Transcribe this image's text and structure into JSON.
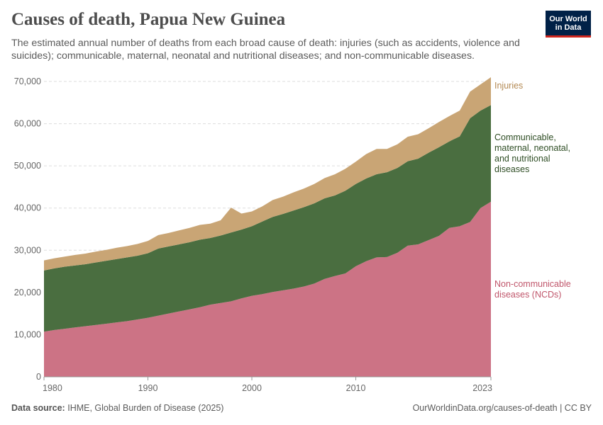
{
  "header": {
    "title": "Causes of death, Papua New Guinea",
    "subtitle": "The estimated annual number of deaths from each broad cause of death: injuries (such as accidents, violence and suicides); communicable, maternal, neonatal and nutritional diseases; and non-communicable diseases.",
    "logo_line1": "Our World",
    "logo_line2": "in Data"
  },
  "footer": {
    "source_label": "Data source:",
    "source_text": "IHME, Global Burden of Disease (2025)",
    "url": "OurWorldinData.org/causes-of-death | CC BY"
  },
  "colors": {
    "ncd": "#cc7385",
    "communicable": "#4a6e40",
    "injuries": "#c9a575",
    "grid": "#dddddd",
    "axis": "#999999"
  },
  "chart_data": {
    "type": "area",
    "stacked": true,
    "title": "Causes of death, Papua New Guinea",
    "x": [
      1980,
      1981,
      1982,
      1983,
      1984,
      1985,
      1986,
      1987,
      1988,
      1989,
      1990,
      1991,
      1992,
      1993,
      1994,
      1995,
      1996,
      1997,
      1998,
      1999,
      2000,
      2001,
      2002,
      2003,
      2004,
      2005,
      2006,
      2007,
      2008,
      2009,
      2010,
      2011,
      2012,
      2013,
      2014,
      2015,
      2016,
      2017,
      2018,
      2019,
      2020,
      2021,
      2022,
      2023
    ],
    "x_tick_labels": [
      "1980",
      "1990",
      "2000",
      "2010",
      "2023"
    ],
    "x_ticks": [
      1980,
      1990,
      2000,
      2010,
      2023
    ],
    "y_tick_labels": [
      "0",
      "10,000",
      "20,000",
      "30,000",
      "40,000",
      "50,000",
      "60,000",
      "70,000"
    ],
    "ylim": [
      0,
      70000
    ],
    "grid": "horizontal dashed",
    "legend": "right, inline labels",
    "series": [
      {
        "name": "Non-communicable diseases (NCDs)",
        "label_lines": [
          "Non-communicable",
          "diseases (NCDs)"
        ],
        "color": "#cc7385",
        "values": [
          10700,
          11100,
          11400,
          11700,
          12000,
          12300,
          12600,
          12900,
          13200,
          13600,
          14000,
          14500,
          15000,
          15500,
          16000,
          16500,
          17100,
          17500,
          17900,
          18600,
          19200,
          19600,
          20100,
          20500,
          20900,
          21400,
          22100,
          23200,
          23900,
          24500,
          26200,
          27400,
          28300,
          28400,
          29400,
          31100,
          31400,
          32400,
          33400,
          35300,
          35700,
          36700,
          40000,
          41500
        ]
      },
      {
        "name": "Communicable, maternal, neonatal, and nutritional diseases",
        "label_lines": [
          "Communicable,",
          "maternal, neonatal,",
          "and nutritional",
          "diseases"
        ],
        "color": "#4a6e40",
        "values": [
          14500,
          14600,
          14700,
          14700,
          14700,
          14800,
          14900,
          15000,
          15100,
          15100,
          15300,
          15900,
          15900,
          15900,
          15900,
          16000,
          15800,
          16000,
          16300,
          16300,
          16500,
          17200,
          17800,
          18100,
          18500,
          18800,
          19000,
          19100,
          19100,
          19600,
          19500,
          19600,
          19700,
          20100,
          20100,
          20000,
          20300,
          20700,
          21000,
          20500,
          21300,
          24600,
          23100,
          22900
        ]
      },
      {
        "name": "Injuries",
        "label_lines": [
          "Injuries"
        ],
        "color": "#c9a575",
        "values": [
          2400,
          2400,
          2400,
          2500,
          2500,
          2600,
          2600,
          2700,
          2700,
          2800,
          2900,
          3200,
          3200,
          3300,
          3400,
          3500,
          3400,
          3600,
          5900,
          3800,
          3500,
          3600,
          4000,
          4100,
          4300,
          4400,
          4600,
          4800,
          5000,
          5200,
          5300,
          5800,
          6000,
          5500,
          5600,
          5800,
          5800,
          5800,
          6000,
          6000,
          6100,
          6300,
          6200,
          6600
        ]
      }
    ]
  }
}
